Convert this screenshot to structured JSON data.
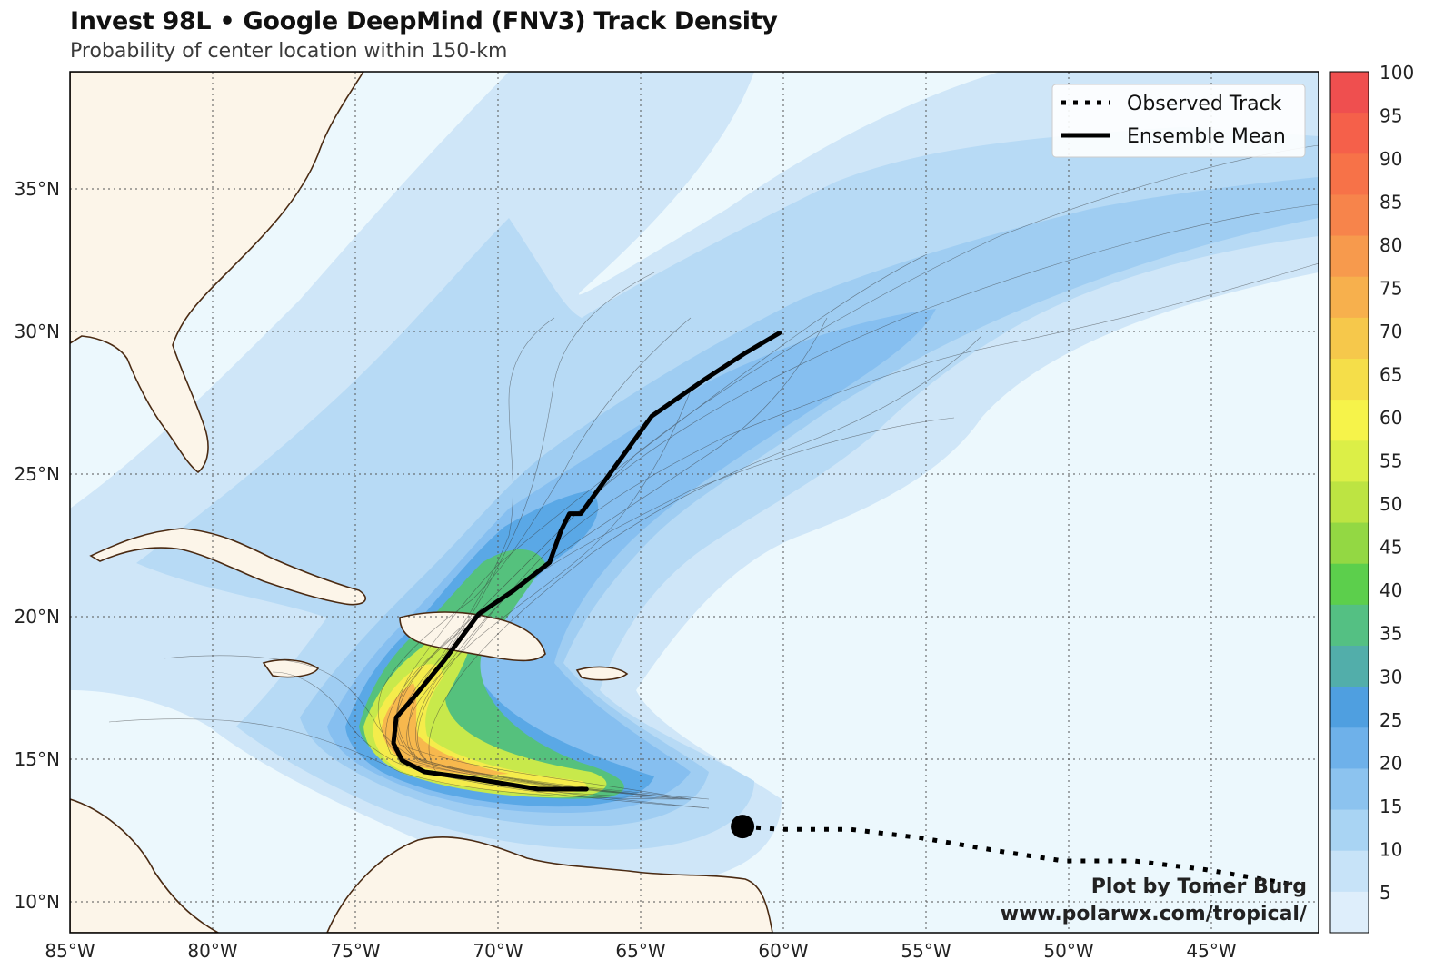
{
  "title": "Invest 98L • Google DeepMind (FNV3) Track Density",
  "subtitle": "Probability of center location within 150-km",
  "lon_ticks": [
    "85°W",
    "80°W",
    "75°W",
    "70°W",
    "65°W",
    "60°W",
    "55°W",
    "50°W",
    "45°W"
  ],
  "lat_ticks": [
    "35°N",
    "30°N",
    "25°N",
    "20°N",
    "15°N",
    "10°N"
  ],
  "colorbar": {
    "labels": [
      "100",
      "95",
      "90",
      "85",
      "80",
      "75",
      "70",
      "65",
      "60",
      "55",
      "50",
      "45",
      "40",
      "35",
      "30",
      "25",
      "20",
      "15",
      "10",
      "5"
    ],
    "colors": [
      "#ef4f4f",
      "#f5604a",
      "#f77248",
      "#f7844b",
      "#f79a4d",
      "#f7b04d",
      "#f6c84b",
      "#f5de49",
      "#f6f34a",
      "#dcef47",
      "#bde442",
      "#93d843",
      "#5ccf4c",
      "#54c083",
      "#52aeaa",
      "#4f9fe0",
      "#6eb1ea",
      "#8cc3ef",
      "#a9d4f3",
      "#c7e3f8",
      "#deeefb"
    ]
  },
  "legend": {
    "observed": "Observed Track",
    "mean": "Ensemble Mean"
  },
  "credit": {
    "line1": "Plot by Tomer Burg",
    "line2": "www.polarwx.com/tropical/"
  },
  "map_data": {
    "extent": {
      "lon": [
        -85,
        -41
      ],
      "lat": [
        9,
        39
      ]
    },
    "ensemble_mean": [
      [
        -66.8,
        14.0
      ],
      [
        -68.5,
        14.0
      ],
      [
        -71.0,
        14.4
      ],
      [
        -72.5,
        14.6
      ],
      [
        -73.3,
        15.0
      ],
      [
        -73.6,
        15.6
      ],
      [
        -73.5,
        16.5
      ],
      [
        -72.8,
        17.3
      ],
      [
        -71.8,
        18.5
      ],
      [
        -70.6,
        20.1
      ],
      [
        -69.4,
        20.9
      ],
      [
        -68.1,
        21.9
      ],
      [
        -67.7,
        23.0
      ],
      [
        -67.4,
        23.6
      ],
      [
        -67.0,
        23.6
      ],
      [
        -64.5,
        27.0
      ],
      [
        -62.6,
        28.3
      ],
      [
        -61.2,
        29.2
      ],
      [
        -60.0,
        29.9
      ]
    ],
    "observed_track": [
      [
        -61.3,
        12.7
      ],
      [
        -60.0,
        12.6
      ],
      [
        -57.5,
        12.6
      ],
      [
        -55.0,
        12.3
      ],
      [
        -52.0,
        11.8
      ],
      [
        -50.0,
        11.5
      ],
      [
        -47.5,
        11.5
      ],
      [
        -45.0,
        11.2
      ],
      [
        -42.0,
        10.7
      ]
    ],
    "current_position": [
      -61.3,
      12.7
    ]
  }
}
